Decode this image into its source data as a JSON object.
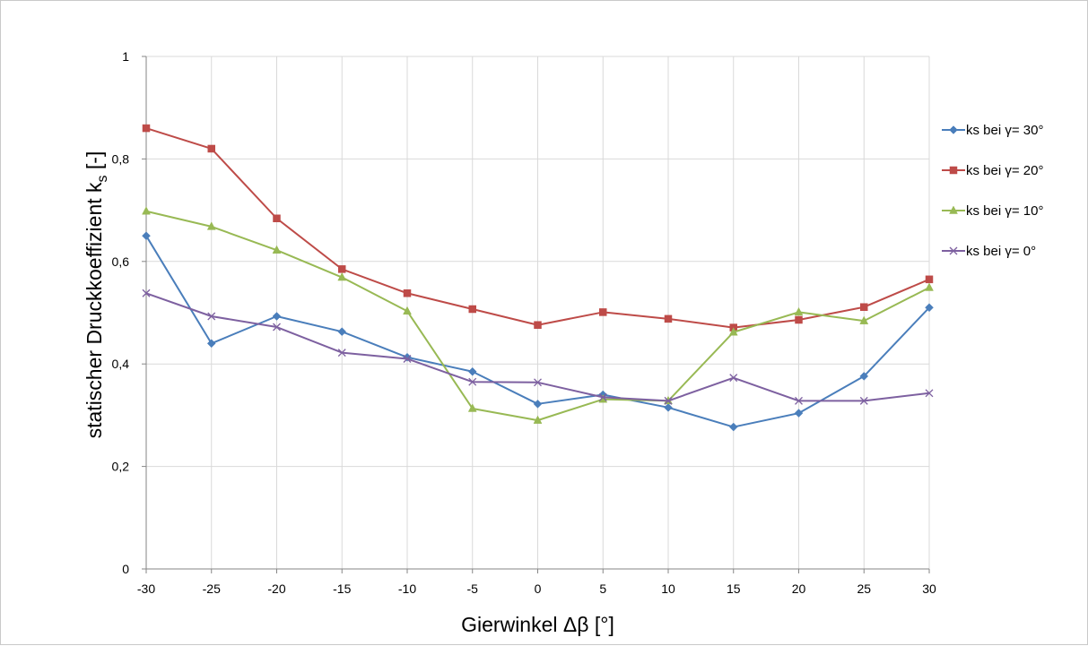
{
  "chart_data": {
    "type": "line",
    "title": "",
    "xlabel": "Gierwinkel Δβ [°]",
    "ylabel_main": "statischer Druckkoeffizient k",
    "ylabel_sub": "s",
    "ylabel_suffix": " [-]",
    "x": [
      -30,
      -25,
      -20,
      -15,
      -10,
      -5,
      0,
      5,
      10,
      15,
      20,
      25,
      30
    ],
    "x_tick_labels": [
      "-30",
      "-25",
      "-20",
      "-15",
      "-10",
      "-5",
      "0",
      "5",
      "10",
      "15",
      "20",
      "25",
      "30"
    ],
    "y_ticks": [
      0,
      0.2,
      0.4,
      0.6,
      0.8,
      1
    ],
    "y_tick_labels": [
      "0",
      "0,2",
      "0,4",
      "0,6",
      "0,8",
      "1"
    ],
    "xlim": [
      -30,
      30
    ],
    "ylim": [
      0,
      1
    ],
    "grid": true,
    "legend_position": "right",
    "series": [
      {
        "name": "ks bei γ= 30°",
        "color": "#4a7ebb",
        "marker": "diamond",
        "values": [
          0.65,
          0.44,
          0.493,
          0.463,
          0.413,
          0.385,
          0.322,
          0.34,
          0.315,
          0.277,
          0.304,
          0.376,
          0.51
        ]
      },
      {
        "name": "ks bei γ= 20°",
        "color": "#be4b48",
        "marker": "square",
        "values": [
          0.86,
          0.82,
          0.684,
          0.585,
          0.538,
          0.507,
          0.476,
          0.501,
          0.488,
          0.471,
          0.486,
          0.511,
          0.565
        ]
      },
      {
        "name": "ks bei γ= 10°",
        "color": "#98b954",
        "marker": "triangle",
        "values": [
          0.698,
          0.668,
          0.622,
          0.569,
          0.503,
          0.313,
          0.29,
          0.331,
          0.328,
          0.462,
          0.501,
          0.484,
          0.549
        ]
      },
      {
        "name": "ks bei γ= 0°",
        "color": "#7d60a0",
        "marker": "x",
        "values": [
          0.538,
          0.493,
          0.472,
          0.422,
          0.41,
          0.365,
          0.364,
          0.335,
          0.328,
          0.373,
          0.328,
          0.328,
          0.343
        ]
      }
    ]
  }
}
